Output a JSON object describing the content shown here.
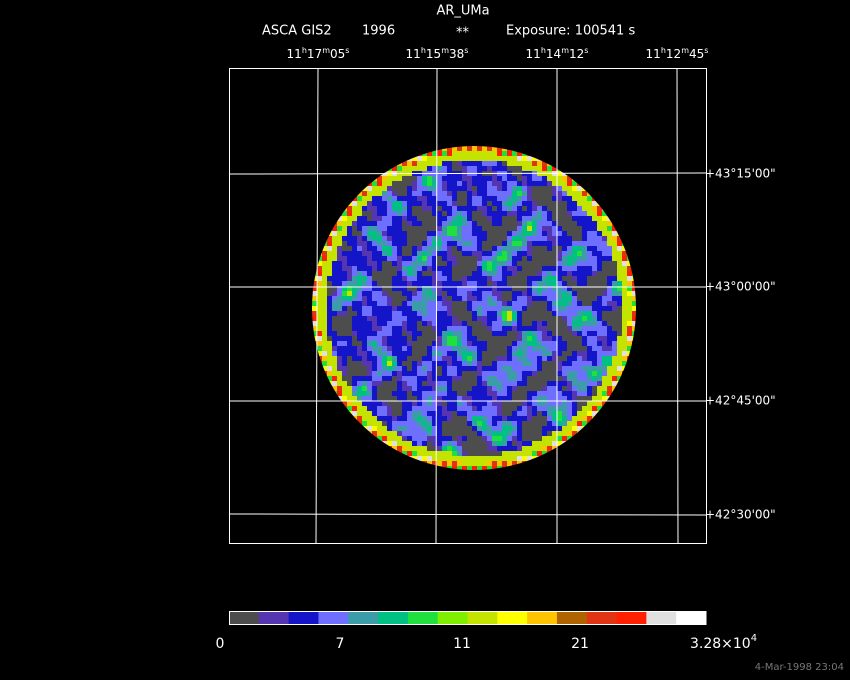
{
  "header": {
    "title": "AR_UMa",
    "instrument": "ASCA GIS2",
    "year": "1996",
    "flag": "**",
    "exposure": "Exposure: 100541 s"
  },
  "ra_labels": [
    [
      "11",
      "h",
      "17",
      "m",
      "05",
      "s"
    ],
    [
      "11",
      "h",
      "15",
      "m",
      "38",
      "s"
    ],
    [
      "11",
      "h",
      "14",
      "m",
      "12",
      "s"
    ],
    [
      "11",
      "h",
      "12",
      "m",
      "45",
      "s"
    ]
  ],
  "dec_labels": [
    "+43°15'00\"",
    "+43°00'00\"",
    "+42°45'00\"",
    "+42°30'00\""
  ],
  "colorbar": {
    "colors": [
      "#4d4d4d",
      "#5535b0",
      "#1414c8",
      "#6e6eff",
      "#3c9ca8",
      "#00c084",
      "#20e040",
      "#80ee00",
      "#c4e400",
      "#ffff00",
      "#ffc400",
      "#b06400",
      "#e03414",
      "#ff2000",
      "#e0e0e0",
      "#ffffff"
    ],
    "labels": [
      "0",
      "7",
      "11",
      "21"
    ],
    "max_label": [
      "3.28×10",
      "4"
    ]
  },
  "stamp": "4-Mar-1998 23:04"
}
